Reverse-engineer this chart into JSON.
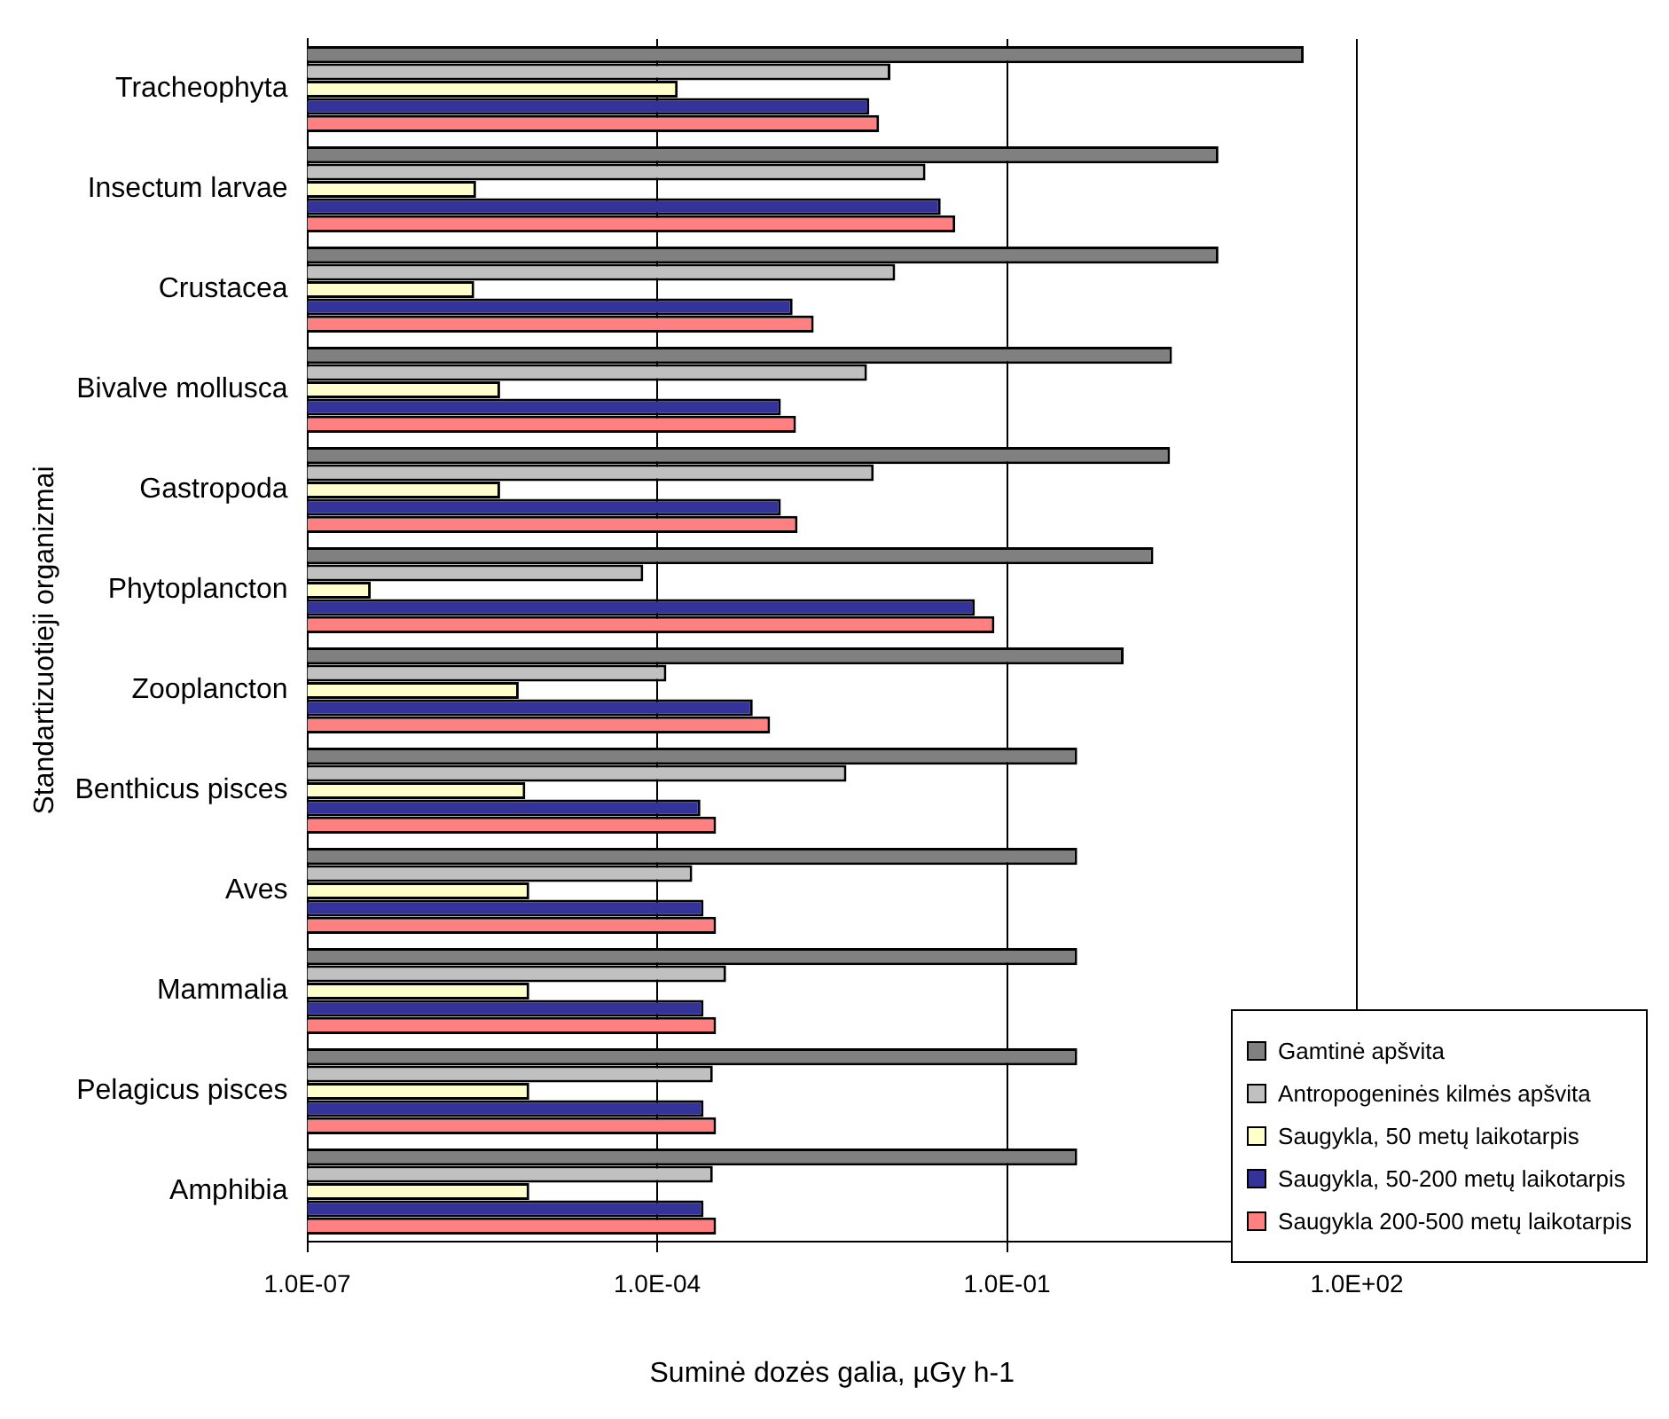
{
  "chart_data": {
    "type": "bar",
    "orientation": "horizontal",
    "log": "x",
    "xlabel": "Suminė dozės galia, µGy h-1",
    "ylabel": "Standartizuotieji organizmai",
    "categories": [
      "Tracheophyta",
      "Insectum larvae",
      "Crustacea",
      "Bivalve mollusca",
      "Gastropoda",
      "Phytoplancton",
      "Zooplancton",
      "Benthicus pisces",
      "Aves",
      "Mammalia",
      "Pelagicus pisces",
      "Amphibia"
    ],
    "series": [
      {
        "name": "Gamtinė apšvita",
        "color": "#808080",
        "values": [
          35,
          6.5,
          6.5,
          2.6,
          2.5,
          1.8,
          1.0,
          0.4,
          0.4,
          0.4,
          0.4,
          0.4
        ]
      },
      {
        "name": "Antropogeninės kilmės apšvita",
        "color": "#c0c0c0",
        "values": [
          0.01,
          0.02,
          0.011,
          0.0063,
          0.0072,
          7.6e-05,
          0.00012,
          0.0042,
          0.0002,
          0.00039,
          0.0003,
          0.0003
        ]
      },
      {
        "name": "Saugykla, 50 metų laikotarpis",
        "color": "#ffffcc",
        "values": [
          0.00015,
          2.8e-06,
          2.7e-06,
          4.5e-06,
          4.5e-06,
          3.5e-07,
          6.5e-06,
          7.4e-06,
          8e-06,
          8e-06,
          8e-06,
          8e-06
        ]
      },
      {
        "name": "Saugykla, 50-200 metų laikotarpis",
        "color": "#333399",
        "values": [
          0.0066,
          0.027,
          0.00145,
          0.00115,
          0.00115,
          0.053,
          0.00066,
          0.000235,
          0.00025,
          0.00025,
          0.00025,
          0.00025
        ]
      },
      {
        "name": "Saugykla 200-500 metų laikotarpis",
        "color": "#ff8080",
        "values": [
          0.008,
          0.036,
          0.0022,
          0.00155,
          0.0016,
          0.078,
          0.00093,
          0.00032,
          0.00032,
          0.00032,
          0.00032,
          0.00032
        ]
      }
    ],
    "xlim": [
      1e-07,
      100
    ],
    "xticks": [
      {
        "value": 1e-07,
        "label": "1.0E-07"
      },
      {
        "value": 0.0001,
        "label": "1.0E-04"
      },
      {
        "value": 0.1,
        "label": "1.0E-01"
      },
      {
        "value": 100,
        "label": "1.0E+02"
      }
    ],
    "grid": "x",
    "legend": "bottom right"
  }
}
